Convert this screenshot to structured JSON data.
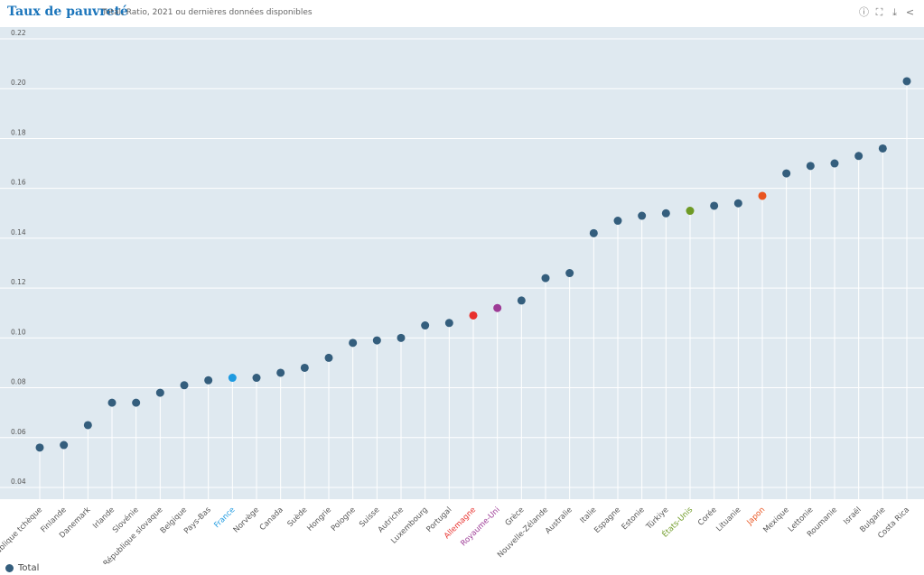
{
  "header": {
    "title": "Taux de pauvreté",
    "subtitle": "Total, Ratio, 2021 ou dernières données disponibles",
    "icons": [
      "info-icon",
      "fullscreen-icon",
      "download-icon",
      "share-icon"
    ]
  },
  "legend": {
    "label": "Total"
  },
  "colors": {
    "default": "#345e7d",
    "background": "#dfe9f0",
    "France": "#1e9ae0",
    "Allemagne": "#e8302d",
    "Royaume-Uni": "#9d3b96",
    "États-Unis": "#6e9a25",
    "Japon": "#e9541f"
  },
  "chart_data": {
    "type": "scatter",
    "title": "Taux de pauvreté",
    "subtitle": "Total, Ratio, 2021 ou dernières données disponibles",
    "xlabel": "",
    "ylabel": "",
    "ylim": [
      0.04,
      0.22
    ],
    "yticks": [
      "0.04",
      "0.06",
      "0.08",
      "0.10",
      "0.12",
      "0.14",
      "0.16",
      "0.18",
      "0.20",
      "0.22"
    ],
    "grid": true,
    "legend_position": "bottom-left",
    "categories": [
      "République tchèque",
      "Finlande",
      "Danemark",
      "Irlande",
      "Slovénie",
      "République slovaque",
      "Belgique",
      "Pays-Bas",
      "France",
      "Norvège",
      "Canada",
      "Suède",
      "Hongrie",
      "Pologne",
      "Suisse",
      "Autriche",
      "Luxembourg",
      "Portugal",
      "Allemagne",
      "Royaume-Uni",
      "Grèce",
      "Nouvelle-Zélande",
      "Australie",
      "Italie",
      "Espagne",
      "Estonie",
      "Türkiye",
      "États-Unis",
      "Corée",
      "Lituanie",
      "Japon",
      "Mexique",
      "Lettonie",
      "Roumanie",
      "Israël",
      "Bulgarie",
      "Costa Rica"
    ],
    "series": [
      {
        "name": "Total",
        "values": [
          0.056,
          0.057,
          0.065,
          0.074,
          0.074,
          0.078,
          0.081,
          0.083,
          0.084,
          0.084,
          0.086,
          0.088,
          0.092,
          0.098,
          0.099,
          0.1,
          0.105,
          0.106,
          0.109,
          0.112,
          0.115,
          0.124,
          0.126,
          0.142,
          0.147,
          0.149,
          0.15,
          0.151,
          0.153,
          0.154,
          0.157,
          0.166,
          0.169,
          0.17,
          0.173,
          0.176,
          0.203
        ]
      }
    ]
  }
}
